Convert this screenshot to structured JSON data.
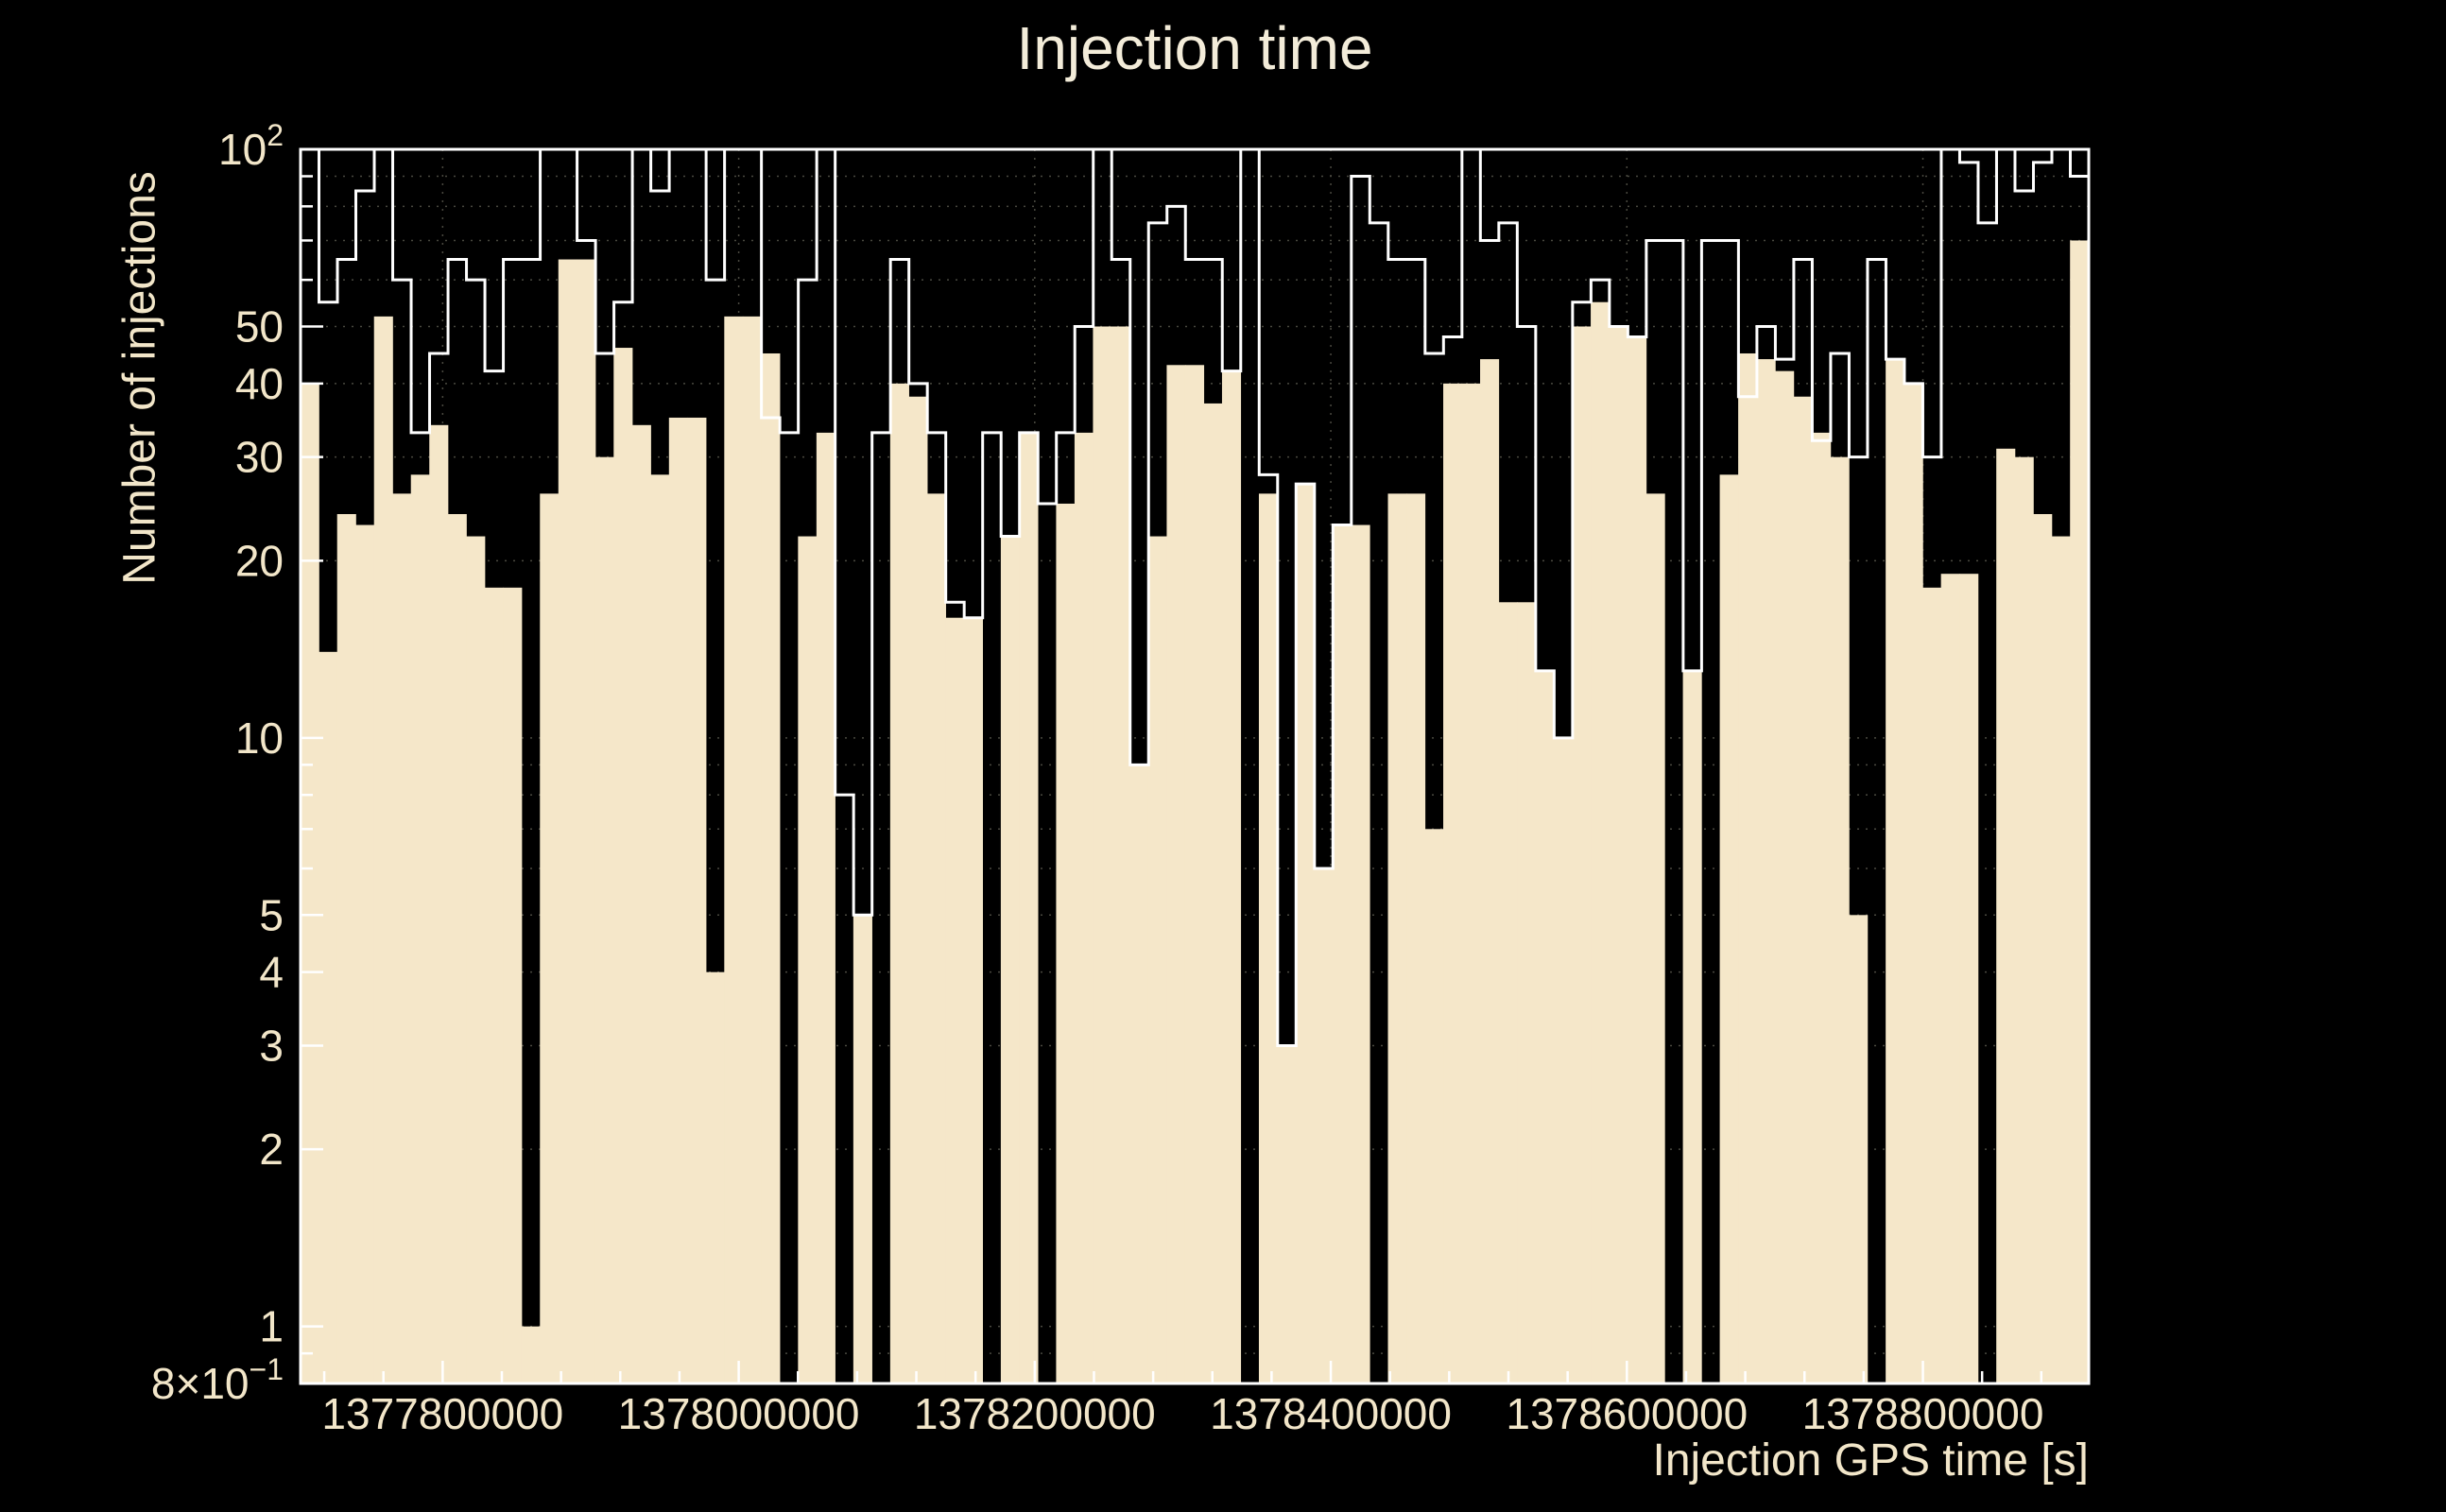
{
  "chart_data": {
    "type": "bar",
    "title": "Injection time",
    "xlabel": "Injection GPS time [s]",
    "ylabel": "Number of injections",
    "yscale": "log",
    "ylim": [
      0.8,
      100
    ],
    "x_start": 1377704000,
    "bin_width": 12454,
    "n_bins": 97,
    "grid": true,
    "legend": "none",
    "series": [
      {
        "name": "injections-filled",
        "style": "filled",
        "color": "#f5e7c9",
        "values": [
          40,
          14,
          24,
          23,
          52,
          26,
          28,
          34,
          24,
          22,
          18,
          18,
          1,
          26,
          65,
          65,
          30,
          46,
          34,
          28,
          35,
          35,
          4,
          52,
          52,
          45,
          0,
          22,
          33,
          0,
          5,
          0,
          40,
          38,
          26,
          16,
          16,
          0,
          22,
          33,
          0,
          25,
          33,
          50,
          50,
          9,
          22,
          43,
          43,
          37,
          42,
          0,
          26,
          3,
          27,
          6,
          23,
          23,
          0,
          26,
          26,
          7,
          40,
          40,
          44,
          17,
          17,
          13,
          10,
          50,
          55,
          50,
          48,
          26,
          0,
          13,
          0,
          28,
          45,
          44,
          42,
          38,
          33,
          30,
          5,
          0,
          44,
          40,
          18,
          19,
          19,
          0,
          31,
          30,
          24,
          22,
          70
        ]
      },
      {
        "name": "injections-outline",
        "style": "step",
        "color": "#ffffff",
        "values": [
          100,
          55,
          65,
          85,
          100,
          60,
          33,
          45,
          65,
          60,
          42,
          65,
          65,
          100,
          100,
          70,
          45,
          55,
          100,
          85,
          100,
          100,
          60,
          100,
          100,
          35,
          33,
          60,
          100,
          8,
          5,
          33,
          65,
          40,
          33,
          17,
          16,
          33,
          22,
          33,
          25,
          33,
          50,
          100,
          65,
          9,
          75,
          80,
          65,
          65,
          42,
          100,
          28,
          3,
          27,
          6,
          23,
          90,
          75,
          65,
          65,
          45,
          48,
          100,
          70,
          75,
          50,
          13,
          10,
          55,
          60,
          50,
          48,
          70,
          70,
          13,
          70,
          70,
          38,
          50,
          44,
          65,
          32,
          45,
          30,
          65,
          44,
          40,
          30,
          100,
          95,
          75,
          100,
          85,
          95,
          100,
          90
        ]
      }
    ],
    "x_ticks": [
      {
        "value": 1377800000,
        "label": "1377800000"
      },
      {
        "value": 1378000000,
        "label": "1378000000"
      },
      {
        "value": 1378200000,
        "label": "1378200000"
      },
      {
        "value": 1378400000,
        "label": "1378400000"
      },
      {
        "value": 1378600000,
        "label": "1378600000"
      },
      {
        "value": 1378800000,
        "label": "1378800000"
      }
    ],
    "x_minor_step": 40000,
    "y_ticks": [
      {
        "value": 100,
        "label": "10",
        "sup": "2"
      },
      {
        "value": 50,
        "label": "50"
      },
      {
        "value": 40,
        "label": "40"
      },
      {
        "value": 30,
        "label": "30"
      },
      {
        "value": 20,
        "label": "20"
      },
      {
        "value": 10,
        "label": "10"
      },
      {
        "value": 5,
        "label": "5"
      },
      {
        "value": 4,
        "label": "4"
      },
      {
        "value": 3,
        "label": "3"
      },
      {
        "value": 2,
        "label": "2"
      },
      {
        "value": 1,
        "label": "1"
      },
      {
        "value": 0.8,
        "label": "8×10",
        "sup": "−1"
      }
    ],
    "y_minor_ticks": [
      90,
      80,
      70,
      60,
      9,
      8,
      7,
      6,
      0.9
    ],
    "colors": {
      "background": "#000000",
      "bar_fill": "#f5e7c9",
      "step_line": "#ffffff",
      "axis": "#ffffff",
      "text": "#f2e6c9",
      "grid": "#4a4940"
    }
  }
}
